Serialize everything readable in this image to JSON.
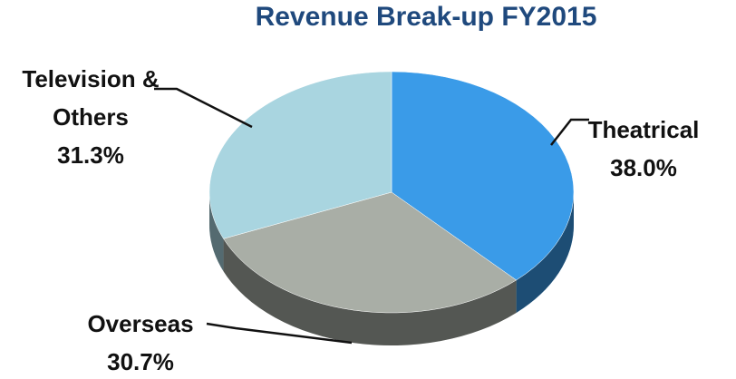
{
  "chart_data": {
    "type": "pie",
    "title": "Revenue Break-up FY2015",
    "categories": [
      "Theatrical",
      "Overseas",
      "Television & Others"
    ],
    "values": [
      38.0,
      30.7,
      31.3
    ],
    "value_labels": [
      "38.0%",
      "30.7%",
      "31.3%"
    ],
    "colors": [
      "#3a9be8",
      "#a9aea6",
      "#a9d5e0"
    ]
  }
}
